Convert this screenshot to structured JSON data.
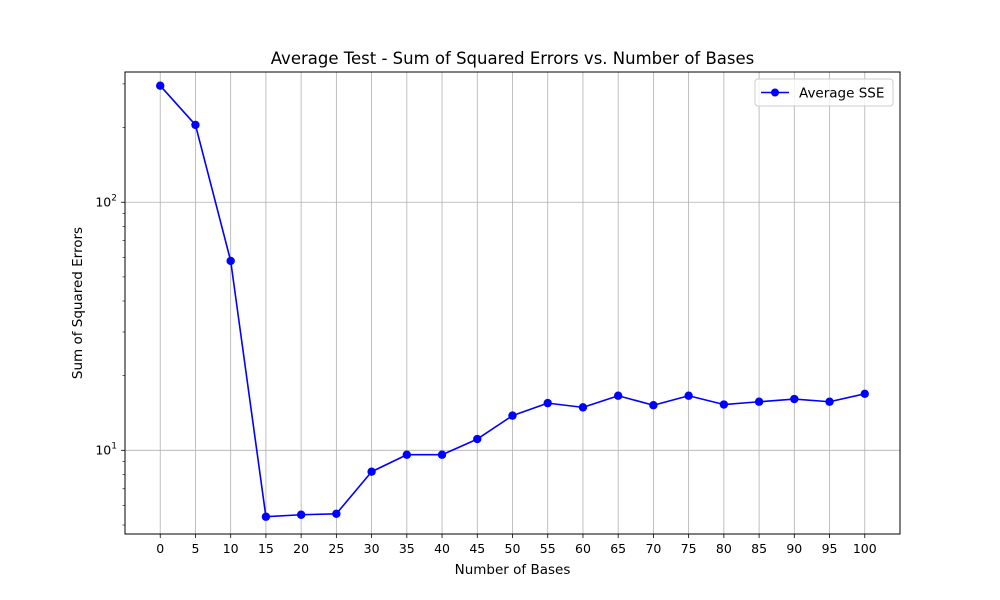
{
  "chart_data": {
    "type": "line",
    "title": "Average Test - Sum of Squared Errors vs. Number of Bases",
    "xlabel": "Number of Bases",
    "ylabel": "Sum of Squared Errors",
    "yscale": "log",
    "grid": true,
    "legend_position": "top-right",
    "x": [
      0,
      5,
      10,
      15,
      20,
      25,
      30,
      35,
      40,
      45,
      50,
      55,
      60,
      65,
      70,
      75,
      80,
      85,
      90,
      95,
      100
    ],
    "xticks": [
      "0",
      "5",
      "10",
      "15",
      "20",
      "25",
      "30",
      "35",
      "40",
      "45",
      "50",
      "55",
      "60",
      "65",
      "70",
      "75",
      "80",
      "85",
      "90",
      "95",
      "100"
    ],
    "xlim": [
      -5,
      105
    ],
    "ylim": [
      4.6,
      335
    ],
    "yticks_major": [
      {
        "value": 10,
        "base": "10",
        "exp": "1"
      },
      {
        "value": 100,
        "base": "10",
        "exp": "2"
      }
    ],
    "series": [
      {
        "name": "Average SSE",
        "color": "#0000ff",
        "values": [
          295,
          205,
          58,
          5.4,
          5.5,
          5.55,
          8.2,
          9.6,
          9.6,
          11.1,
          13.8,
          15.5,
          14.9,
          16.6,
          15.2,
          16.6,
          15.3,
          15.7,
          16.1,
          15.7,
          16.9
        ]
      }
    ]
  }
}
